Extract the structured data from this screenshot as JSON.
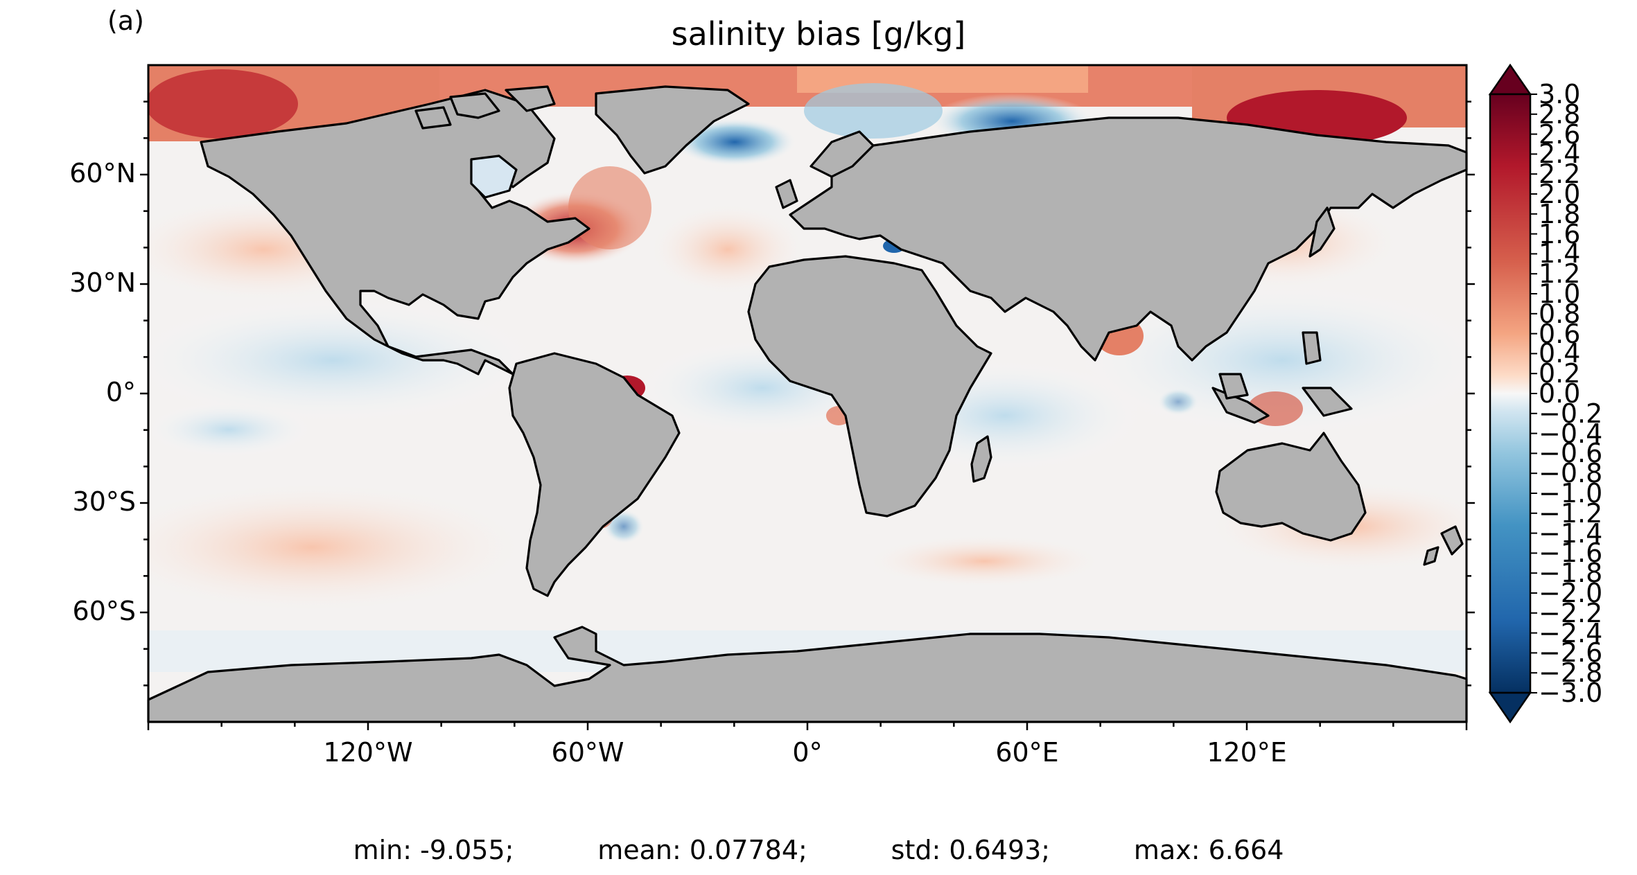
{
  "panel_label": "(a)",
  "title": "salinity bias [g/kg]",
  "lat_labels": [
    "60°N",
    "30°N",
    "0°",
    "30°S",
    "60°S"
  ],
  "lon_labels": [
    "120°W",
    "60°W",
    "0°",
    "60°E",
    "120°E"
  ],
  "colorbar": {
    "vmin": -3.0,
    "vmax": 3.0,
    "extend": "both",
    "colormap": "RdBu_r",
    "tick_labels": [
      "3.0",
      "2.8",
      "2.6",
      "2.4",
      "2.2",
      "2.0",
      "1.8",
      "1.6",
      "1.4",
      "1.2",
      "1.0",
      "0.8",
      "0.6",
      "0.4",
      "0.2",
      "0.0",
      "−0.2",
      "−0.4",
      "−0.6",
      "−0.8",
      "−1.0",
      "−1.2",
      "−1.4",
      "−1.6",
      "−1.8",
      "−2.0",
      "−2.2",
      "−2.4",
      "−2.6",
      "−2.8",
      "−3.0"
    ]
  },
  "colors": {
    "land": "#b2b2b2",
    "coast": "#000000",
    "deep_red": "#67001f",
    "red": "#d6604d",
    "light_red": "#fbd3c0",
    "white": "#f7f7f7",
    "light_blue": "#d1e5f0",
    "blue": "#4393c3",
    "deep_blue": "#053061"
  },
  "stats": {
    "min": "min: -9.055;",
    "mean": "mean: 0.07784;",
    "std": "std: 0.6493;",
    "max": "max: 6.664"
  }
}
